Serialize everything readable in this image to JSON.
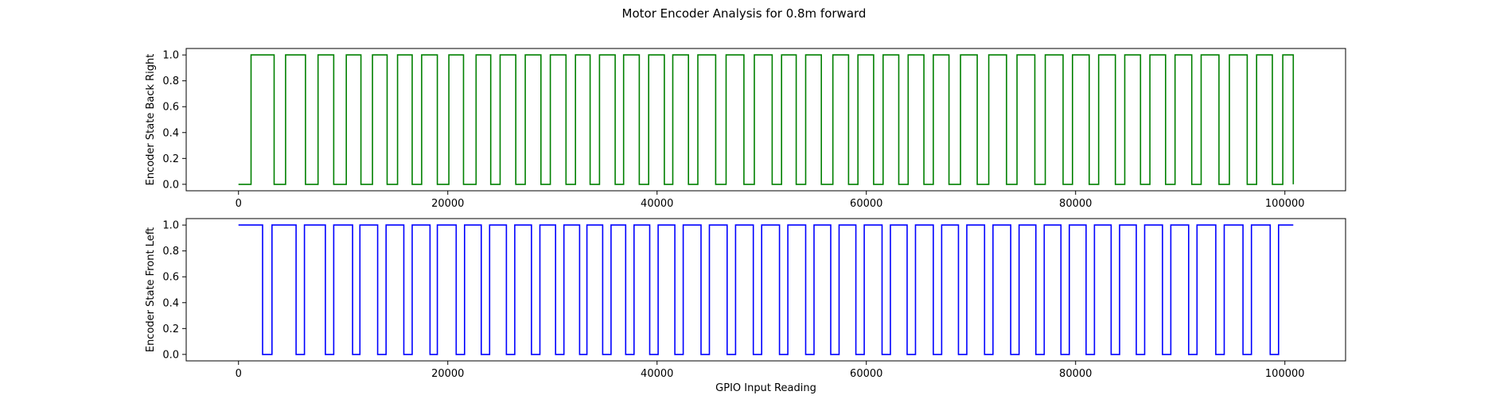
{
  "figure_title": "Motor Encoder Analysis for 0.8m forward",
  "chart_data": [
    {
      "type": "line",
      "step": true,
      "title": "",
      "xlabel": "",
      "ylabel": "Encoder State Back Right",
      "color": "#008000",
      "xlim": [
        -5000,
        105800
      ],
      "ylim": [
        -0.05,
        1.05
      ],
      "xticks": [
        0,
        20000,
        40000,
        60000,
        80000,
        100000
      ],
      "yticks": [
        0.0,
        0.2,
        0.4,
        0.6,
        0.8,
        1.0
      ],
      "xtick_labels": [
        "0",
        "20000",
        "40000",
        "60000",
        "80000",
        "100000"
      ],
      "ytick_labels": [
        "0.0",
        "0.2",
        "0.4",
        "0.6",
        "0.8",
        "1.0"
      ],
      "grid": false,
      "series": [
        {
          "values": {
            "x_start": 0,
            "x_end": 100800,
            "initial": 0,
            "final": 0,
            "transitions": [
              1200,
              3400,
              4500,
              6400,
              7600,
              9100,
              10300,
              11700,
              12800,
              14200,
              15200,
              16600,
              17500,
              19000,
              20100,
              21500,
              22700,
              24100,
              25000,
              26500,
              27400,
              28900,
              29800,
              31300,
              32200,
              33600,
              34500,
              36000,
              36800,
              38300,
              39200,
              40700,
              41500,
              43000,
              43900,
              45600,
              46600,
              48300,
              49300,
              51000,
              51900,
              53300,
              54200,
              55700,
              56800,
              58300,
              59200,
              60700,
              61600,
              63100,
              64000,
              65500,
              66400,
              67900,
              69000,
              70600,
              71700,
              73400,
              74400,
              76100,
              77100,
              78800,
              79700,
              81300,
              82200,
              83800,
              84700,
              86200,
              87100,
              88600,
              89500,
              91100,
              92000,
              93700,
              94700,
              96400,
              97300,
              98800,
              99800,
              100800
            ]
          }
        }
      ]
    },
    {
      "type": "line",
      "step": true,
      "title": "",
      "xlabel": "GPIO Input Reading",
      "ylabel": "Encoder State Front Left",
      "color": "#0000ff",
      "xlim": [
        -5000,
        105800
      ],
      "ylim": [
        -0.05,
        1.05
      ],
      "xticks": [
        0,
        20000,
        40000,
        60000,
        80000,
        100000
      ],
      "yticks": [
        0.0,
        0.2,
        0.4,
        0.6,
        0.8,
        1.0
      ],
      "xtick_labels": [
        "0",
        "20000",
        "40000",
        "60000",
        "80000",
        "100000"
      ],
      "ytick_labels": [
        "0.0",
        "0.2",
        "0.4",
        "0.6",
        "0.8",
        "1.0"
      ],
      "grid": false,
      "series": [
        {
          "values": {
            "x_start": 0,
            "x_end": 100800,
            "initial": 1,
            "final": 1,
            "transitions": [
              2300,
              3200,
              5500,
              6300,
              8300,
              9100,
              10900,
              11600,
              13300,
              14100,
              15800,
              16600,
              18300,
              19000,
              20800,
              21600,
              23200,
              24000,
              25600,
              26400,
              28000,
              28800,
              30300,
              31100,
              32600,
              33300,
              34800,
              35600,
              37000,
              37800,
              39300,
              40100,
              41700,
              42500,
              44200,
              45000,
              46700,
              47500,
              49200,
              50000,
              51700,
              52500,
              54200,
              55000,
              56600,
              57400,
              59000,
              59800,
              61500,
              62300,
              63900,
              64700,
              66400,
              67200,
              68800,
              69600,
              71300,
              72100,
              73800,
              74600,
              76200,
              77000,
              78600,
              79400,
              81000,
              81800,
              83400,
              84200,
              85800,
              86600,
              88300,
              89100,
              90800,
              91600,
              93400,
              94200,
              96000,
              96800,
              98600,
              99400
            ]
          }
        }
      ]
    }
  ]
}
